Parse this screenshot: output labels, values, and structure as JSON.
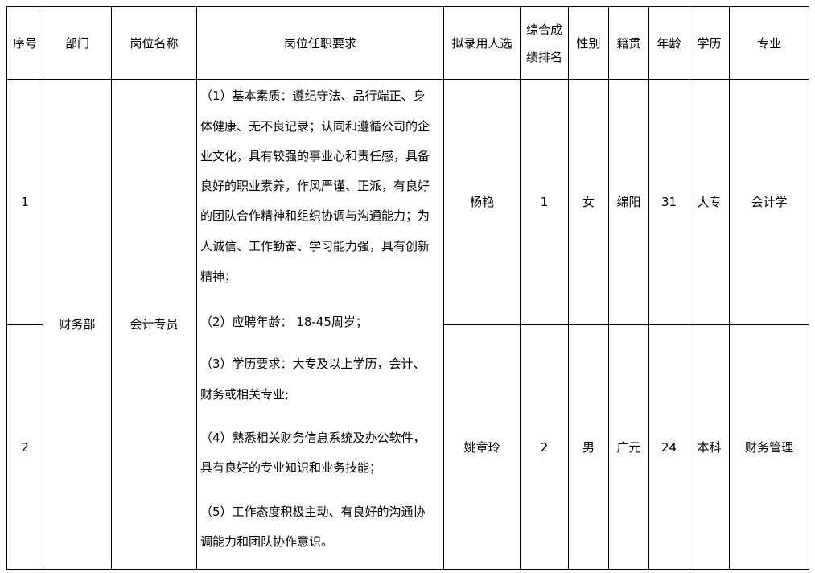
{
  "headers": [
    "序号",
    "部门",
    "岗位名称",
    "岗位任职要求",
    "拟录用人选",
    "综合成绩排名",
    "性别",
    "籍贯",
    "年龄",
    "学历",
    "专业"
  ],
  "header_rank_lines": [
    "综合成",
    "绩排名"
  ],
  "department": "财务部",
  "position": "会计专员",
  "requirements_lines": [
    "（1）基本素质：遵纪守法、品行端正、身",
    "体健康、无不良记录；认同和遵循公司的企",
    "业文化，具有较强的事业心和责任感，具备",
    "良好的职业素养，作风严谨、正派，有良好",
    "的团队合作精神和组织协调与沟通能力；为",
    "人诚信、工作勤奋、学习能力强，具有创新",
    "精神；",
    "（2）应聘年龄： 18-45周岁；",
    "（3）学历要求：大专及以上学历，会计、",
    "财务或相关专业;",
    "（4）熟悉相关财务信息系统及办公软件，",
    "具有良好的专业知识和业务技能；",
    "（5）工作态度积极主动、有良好的沟通协",
    "调能力和团队协作意识。"
  ],
  "rows": [
    {
      "no": "1",
      "name": "杨艳",
      "rank": "1",
      "gender": "女",
      "hometown": "绵阳",
      "age": "31",
      "education": "大专",
      "major": "会计学"
    },
    {
      "no": "2",
      "name": "姚章玲",
      "rank": "2",
      "gender": "男",
      "hometown": "广元",
      "age": "24",
      "education": "本科",
      "major": "财务管理"
    }
  ]
}
